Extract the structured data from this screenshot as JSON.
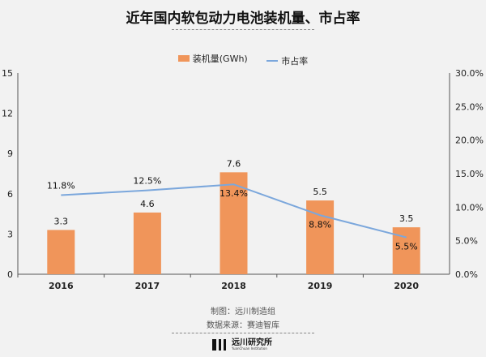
{
  "chart_data": {
    "type": "bar",
    "title": "近年国内软包动力电池装机量、市占率",
    "categories": [
      "2016",
      "2017",
      "2018",
      "2019",
      "2020"
    ],
    "series": [
      {
        "name": "装机量(GWh)",
        "type": "bar",
        "axis": "left",
        "color": "#f0955a",
        "values": [
          3.3,
          4.6,
          7.6,
          5.5,
          3.5
        ],
        "labels": [
          "3.3",
          "4.6",
          "7.6",
          "5.5",
          "3.5"
        ]
      },
      {
        "name": "市占率",
        "type": "line",
        "axis": "right",
        "color": "#7ba7dc",
        "values": [
          11.8,
          12.5,
          13.4,
          8.8,
          5.5
        ],
        "labels": [
          "11.8%",
          "12.5%",
          "13.4%",
          "8.8%",
          "5.5%"
        ]
      }
    ],
    "ylim": [
      0,
      15
    ],
    "yticks": [
      "0",
      "3",
      "6",
      "9",
      "12",
      "15"
    ],
    "y2lim": [
      0,
      30
    ],
    "y2ticks": [
      "0.0%",
      "5.0%",
      "10.0%",
      "15.0%",
      "20.0%",
      "25.0%",
      "30.0%"
    ],
    "grid": false,
    "legend": "top-center"
  },
  "footer": {
    "credit": "制图：远川制造组",
    "source": "数据来源：赛迪智库",
    "logo_cn": "远川研究所",
    "logo_en": "YuanChuan Institution"
  }
}
